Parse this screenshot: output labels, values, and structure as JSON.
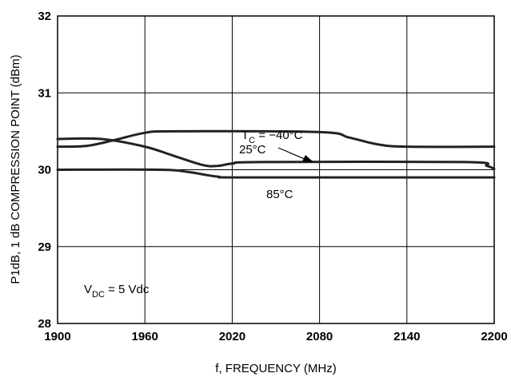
{
  "chart_data": {
    "type": "line",
    "title": "",
    "xlabel": "f, FREQUENCY (MHz)",
    "ylabel": "P1dB, 1 dB COMPRESSION POINT (dBm)",
    "xlim": [
      1900,
      2200
    ],
    "ylim": [
      28,
      32
    ],
    "x_ticks": [
      1900,
      1960,
      2020,
      2080,
      2140,
      2200
    ],
    "y_ticks": [
      28,
      29,
      30,
      31,
      32
    ],
    "x_tick_labels": [
      "1900",
      "1960",
      "2020",
      "2080",
      "2140",
      "2200"
    ],
    "y_tick_labels": [
      "28",
      "29",
      "30",
      "31",
      "32"
    ],
    "grid": true,
    "series": [
      {
        "name": "T_C = -40°C",
        "points": [
          [
            1900,
            30.3
          ],
          [
            1920,
            30.31
          ],
          [
            1940,
            30.39
          ],
          [
            1960,
            30.48
          ],
          [
            1980,
            30.5
          ],
          [
            2080,
            30.49
          ],
          [
            2100,
            30.42
          ],
          [
            2120,
            30.33
          ],
          [
            2140,
            30.3
          ],
          [
            2200,
            30.3
          ]
        ]
      },
      {
        "name": "25°C",
        "points": [
          [
            1900,
            30.4
          ],
          [
            1930,
            30.4
          ],
          [
            1960,
            30.3
          ],
          [
            1980,
            30.18
          ],
          [
            2000,
            30.06
          ],
          [
            2010,
            30.05
          ],
          [
            2020,
            30.08
          ],
          [
            2040,
            30.1
          ],
          [
            2180,
            30.1
          ],
          [
            2195,
            30.05
          ],
          [
            2200,
            30.01
          ]
        ]
      },
      {
        "name": "85°C",
        "points": [
          [
            1900,
            30.0
          ],
          [
            1970,
            30.0
          ],
          [
            1990,
            29.97
          ],
          [
            2010,
            29.91
          ],
          [
            2030,
            29.9
          ],
          [
            2200,
            29.9
          ]
        ]
      }
    ],
    "annotations": {
      "tc": {
        "main": "T",
        "sub": "C",
        "rest": " = −40°C"
      },
      "t25": {
        "text": "25°C"
      },
      "t85": {
        "text": "85°C"
      },
      "vdc": {
        "main": "V",
        "sub": "DC",
        "rest": " = 5 Vdc"
      }
    }
  }
}
